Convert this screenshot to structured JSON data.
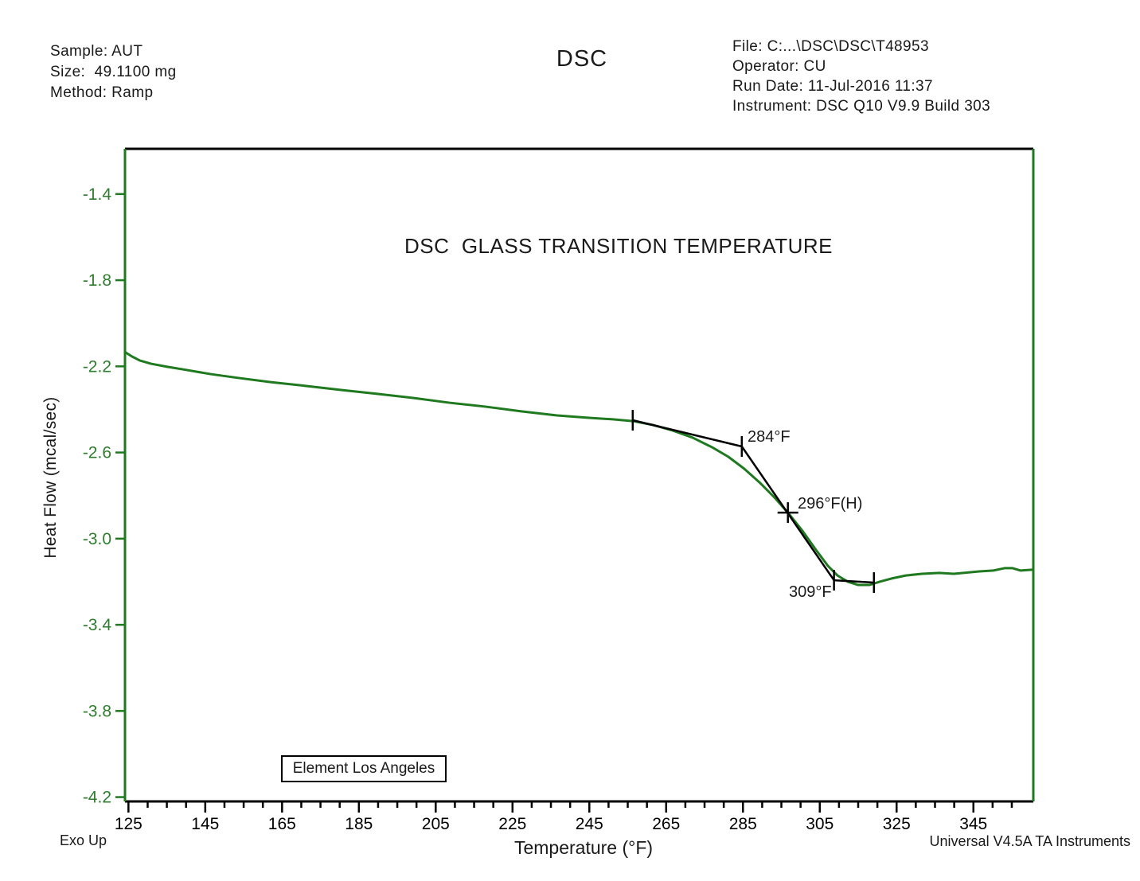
{
  "header": {
    "left_lines": [
      "Sample: AUT",
      "Size:  49.1100 mg",
      "Method: Ramp"
    ],
    "title": "DSC",
    "right_lines": [
      "File: C:...\\DSC\\DSC\\T48953",
      "Operator: CU",
      "Run Date: 11-Jul-2016 11:37",
      "Instrument: DSC Q10 V9.9 Build 303"
    ]
  },
  "lab_box_label": "Element Los Angeles",
  "footer": {
    "exo_up": "Exo Up",
    "credit": "Universal V4.5A TA Instruments"
  },
  "colors": {
    "green": "#1f7a1f",
    "green_text": "#2e7d2e",
    "black": "#000000"
  },
  "chart_data": {
    "type": "line",
    "title": "DSC  GLASS TRANSITION TEMPERATURE",
    "xlabel": "Temperature (°F)",
    "ylabel": "Heat Flow (mcal/sec)",
    "xlim": [
      124.1,
      360.6
    ],
    "ylim": [
      -4.22,
      -1.19
    ],
    "grid": false,
    "legend": "none",
    "x_ticks_major": [
      125,
      145,
      165,
      185,
      205,
      225,
      245,
      265,
      285,
      305,
      325,
      345
    ],
    "x_tick_minor_step": 5,
    "x_minor_max": 355,
    "y_ticks": [
      -1.4,
      -1.8,
      -2.2,
      -2.6,
      -3.0,
      -3.4,
      -3.8,
      -4.2
    ],
    "series": [
      {
        "name": "Heat Flow",
        "color": "#1f7a1f",
        "points": [
          [
            124.3,
            -2.136
          ],
          [
            125.9,
            -2.154
          ],
          [
            128.0,
            -2.173
          ],
          [
            130.9,
            -2.188
          ],
          [
            135.1,
            -2.202
          ],
          [
            140.2,
            -2.217
          ],
          [
            146.4,
            -2.236
          ],
          [
            153.7,
            -2.254
          ],
          [
            162.0,
            -2.273
          ],
          [
            171.3,
            -2.291
          ],
          [
            180.6,
            -2.31
          ],
          [
            190.0,
            -2.328
          ],
          [
            199.3,
            -2.347
          ],
          [
            208.6,
            -2.369
          ],
          [
            217.9,
            -2.387
          ],
          [
            227.3,
            -2.409
          ],
          [
            236.6,
            -2.428
          ],
          [
            244.9,
            -2.439
          ],
          [
            251.1,
            -2.446
          ],
          [
            256.3,
            -2.454
          ],
          [
            261.5,
            -2.472
          ],
          [
            266.7,
            -2.498
          ],
          [
            271.9,
            -2.531
          ],
          [
            277.0,
            -2.576
          ],
          [
            281.2,
            -2.62
          ],
          [
            285.3,
            -2.675
          ],
          [
            289.5,
            -2.742
          ],
          [
            293.0,
            -2.805
          ],
          [
            296.7,
            -2.879
          ],
          [
            300.5,
            -2.964
          ],
          [
            304.0,
            -3.052
          ],
          [
            307.1,
            -3.126
          ],
          [
            309.6,
            -3.171
          ],
          [
            312.3,
            -3.2
          ],
          [
            315.0,
            -3.215
          ],
          [
            317.9,
            -3.215
          ],
          [
            320.6,
            -3.2
          ],
          [
            323.7,
            -3.185
          ],
          [
            327.4,
            -3.171
          ],
          [
            331.6,
            -3.163
          ],
          [
            336.1,
            -3.159
          ],
          [
            339.9,
            -3.163
          ],
          [
            342.4,
            -3.159
          ],
          [
            346.5,
            -3.152
          ],
          [
            350.2,
            -3.148
          ],
          [
            353.1,
            -3.137
          ],
          [
            355.2,
            -3.137
          ],
          [
            357.3,
            -3.148
          ],
          [
            360.6,
            -3.144
          ]
        ]
      }
    ],
    "annotations": {
      "labels": {
        "onset": "284°F",
        "half_height": "296°F(H)",
        "end": "309°F"
      },
      "lines": [
        [
          [
            256.3,
            -2.45
          ],
          [
            284.7,
            -2.572
          ]
        ],
        [
          [
            284.7,
            -2.572
          ],
          [
            308.7,
            -3.193
          ]
        ],
        [
          [
            308.7,
            -3.193
          ],
          [
            319.1,
            -3.204
          ]
        ]
      ],
      "tick_markers": [
        [
          256.3,
          -2.45
        ],
        [
          284.7,
          -2.572
        ],
        [
          308.7,
          -3.193
        ],
        [
          319.1,
          -3.204
        ]
      ],
      "cross_markers": [
        [
          296.7,
          -2.879
        ]
      ]
    }
  }
}
